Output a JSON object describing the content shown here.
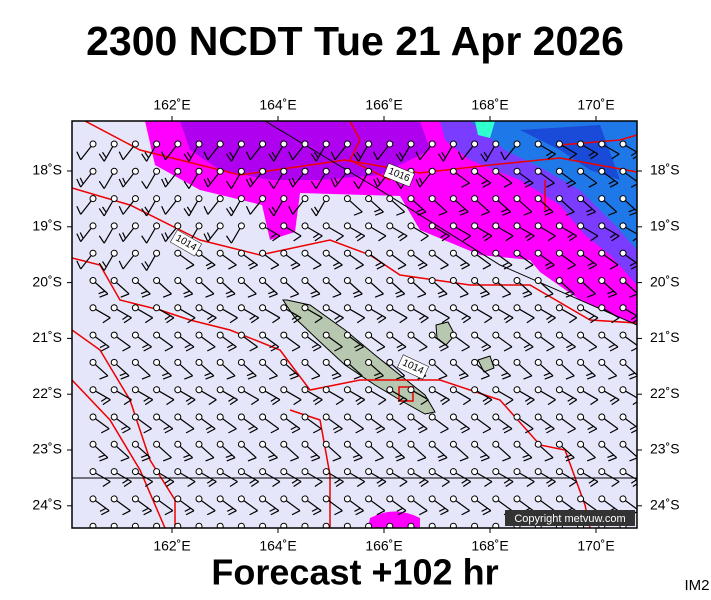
{
  "header": {
    "title": "2300 NCDT Tue 21 Apr 2026"
  },
  "map": {
    "lon_labels": [
      "162˚E",
      "164˚E",
      "166˚E",
      "168˚E",
      "170˚E"
    ],
    "lat_labels": [
      "18˚S",
      "19˚S",
      "20˚S",
      "21˚S",
      "22˚S",
      "23˚S",
      "24˚S"
    ],
    "isobar_labels": [
      "1016",
      "1014",
      "1014"
    ],
    "copyright": "Copyright metvuw.com"
  },
  "footer": {
    "forecast": "Forecast +102 hr",
    "image_id": "IM2"
  }
}
